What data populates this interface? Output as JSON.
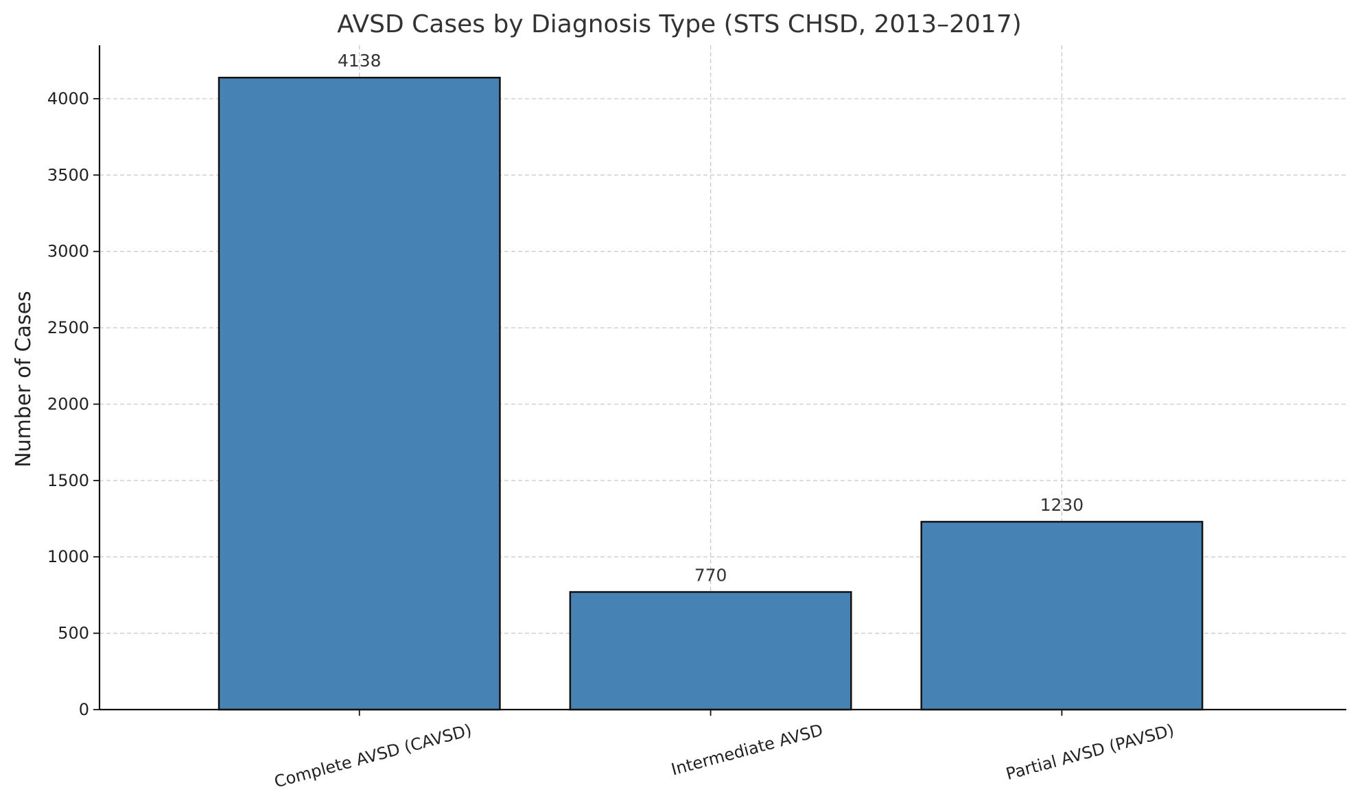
{
  "chart_data": {
    "type": "bar",
    "title": "AVSD Cases by Diagnosis Type (STS CHSD, 2013–2017)",
    "xlabel": "",
    "ylabel": "Number of Cases",
    "categories": [
      "Complete AVSD (CAVSD)",
      "Intermediate AVSD",
      "Partial AVSD (PAVSD)"
    ],
    "values": [
      4138,
      770,
      1230
    ],
    "data_labels": [
      "4138",
      "770",
      "1230"
    ],
    "ylim": [
      0,
      4350
    ],
    "yticks": [
      0,
      500,
      1000,
      1500,
      2000,
      2500,
      3000,
      3500,
      4000
    ],
    "ytick_labels": [
      "0",
      "500",
      "1000",
      "1500",
      "2000",
      "2500",
      "3000",
      "3500",
      "4000"
    ],
    "grid": true,
    "legend": "none",
    "colors": {
      "bar_fill": "#4682b4",
      "bar_edge": "#111111",
      "grid": "#c8c8c8",
      "text": "#222222"
    }
  }
}
